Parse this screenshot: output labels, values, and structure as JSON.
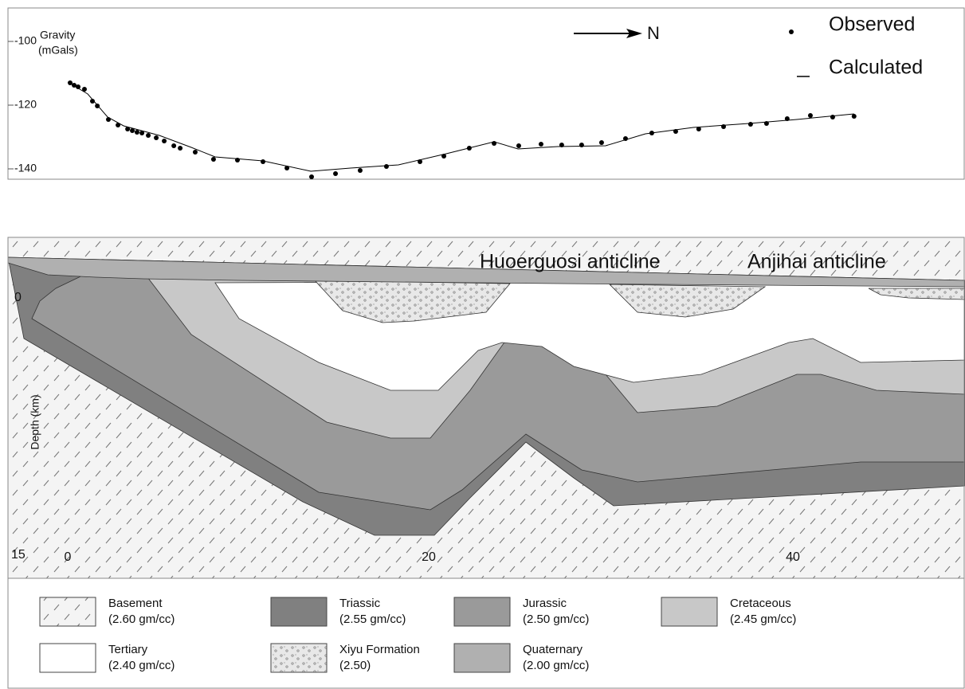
{
  "chart_data": {
    "type": "scatter",
    "ylabel": "Gravity",
    "yunit": "(mGals)",
    "north_label": "N",
    "xlim": [
      -3.3,
      49.5
    ],
    "ylim": [
      -143.25,
      -89.5
    ],
    "yticks": [
      -140,
      -120,
      -100
    ],
    "series": [
      {
        "name": "Observed",
        "color": "#000000",
        "style": "points",
        "x": [
          0.13,
          0.35,
          0.57,
          0.92,
          1.36,
          1.63,
          2.24,
          2.77,
          3.3,
          3.56,
          3.82,
          4.09,
          4.44,
          4.88,
          5.32,
          5.85,
          6.2,
          7.03,
          8.04,
          9.36,
          10.77,
          12.09,
          13.45,
          14.77,
          16.13,
          17.58,
          19.43,
          20.75,
          22.15,
          23.52,
          24.88,
          26.11,
          27.25,
          28.35,
          29.45,
          30.77,
          32.22,
          33.54,
          34.81,
          36.18,
          37.67,
          38.55,
          39.69,
          40.97,
          42.2,
          43.38
        ],
        "values": [
          -113,
          -113.75,
          -114.25,
          -115,
          -118.75,
          -120.25,
          -124.5,
          -126.25,
          -127.5,
          -128,
          -128.5,
          -128.75,
          -129.5,
          -130.25,
          -131.25,
          -132.75,
          -133.5,
          -134.75,
          -137,
          -137.25,
          -137.75,
          -139.75,
          -142.5,
          -141.5,
          -140.5,
          -139.25,
          -137.75,
          -136,
          -133.5,
          -132,
          -132.75,
          -132.25,
          -132.5,
          -132.5,
          -131.75,
          -130.5,
          -128.75,
          -128.25,
          -127.5,
          -126.75,
          -126,
          -125.75,
          -124.25,
          -123.25,
          -123.75,
          -123.5
        ]
      },
      {
        "name": "Calculated",
        "color": "#000000",
        "style": "line",
        "x": [
          0,
          1.1,
          2.2,
          3.08,
          5.05,
          6.81,
          8.13,
          10.77,
          13.41,
          15.6,
          18.24,
          20.88,
          23.52,
          24.84,
          27.03,
          29.67,
          31.87,
          34.51,
          37.58,
          40.22,
          43.38
        ],
        "values": [
          -112.75,
          -116.5,
          -123.75,
          -126.5,
          -129.5,
          -133.25,
          -136.25,
          -137.5,
          -140.75,
          -139.75,
          -138.75,
          -135.25,
          -131.5,
          -133.75,
          -133,
          -132.75,
          -129,
          -127,
          -125.75,
          -124.5,
          -122.75
        ]
      }
    ]
  },
  "cross_section": {
    "annotations": [
      "Huoerguosi anticline",
      "Anjihai anticline"
    ],
    "depth_label": "Depth (km)",
    "depth_ticks": [
      "0",
      "15"
    ],
    "distance_ticks": [
      "0",
      "20",
      "40"
    ],
    "legend": [
      {
        "name": "Basement",
        "density": "(2.60 gm/cc)"
      },
      {
        "name": "Triassic",
        "density": "(2.55 gm/cc)"
      },
      {
        "name": "Jurassic",
        "density": "(2.50 gm/cc)"
      },
      {
        "name": "Cretaceous",
        "density": "(2.45 gm/cc)"
      },
      {
        "name": "Tertiary",
        "density": "(2.40 gm/cc)"
      },
      {
        "name": "Xiyu Formation",
        "density": "(2.50)"
      },
      {
        "name": "Quaternary",
        "density": "(2.00 gm/cc)"
      }
    ]
  }
}
